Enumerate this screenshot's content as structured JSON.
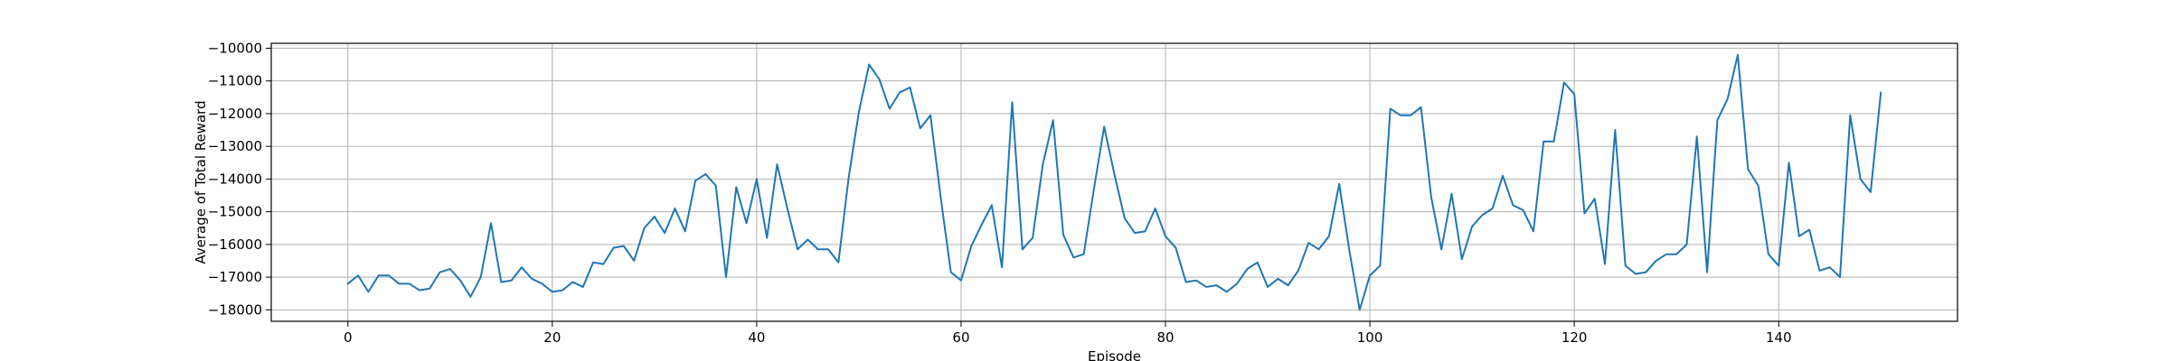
{
  "chart_data": {
    "type": "line",
    "title": "",
    "xlabel": "Episode",
    "ylabel": "Average of Total Reward",
    "xlim": [
      -7.5,
      157.5
    ],
    "ylim": [
      -18350,
      -9850
    ],
    "xticks": [
      0,
      20,
      40,
      60,
      80,
      100,
      120,
      140
    ],
    "yticks": [
      -18000,
      -17000,
      -16000,
      -15000,
      -14000,
      -13000,
      -12000,
      -11000,
      -10000
    ],
    "xtick_labels": [
      "0",
      "20",
      "40",
      "60",
      "80",
      "100",
      "120",
      "140"
    ],
    "ytick_labels": [
      "−18000",
      "−17000",
      "−16000",
      "−15000",
      "−14000",
      "−13000",
      "−12000",
      "−11000",
      "−10000"
    ],
    "grid": true,
    "legend": "none",
    "series": [
      {
        "color": "#1f77b4",
        "x": [
          0,
          1,
          2,
          3,
          4,
          5,
          6,
          7,
          8,
          9,
          10,
          11,
          12,
          13,
          14,
          15,
          16,
          17,
          18,
          19,
          20,
          21,
          22,
          23,
          24,
          25,
          26,
          27,
          28,
          29,
          30,
          31,
          32,
          33,
          34,
          35,
          36,
          37,
          38,
          39,
          40,
          41,
          42,
          43,
          44,
          45,
          46,
          47,
          48,
          49,
          50,
          51,
          52,
          53,
          54,
          55,
          56,
          57,
          58,
          59,
          60,
          61,
          62,
          63,
          64,
          65,
          66,
          67,
          68,
          69,
          70,
          71,
          72,
          73,
          74,
          75,
          76,
          77,
          78,
          79,
          80,
          81,
          82,
          83,
          84,
          85,
          86,
          87,
          88,
          89,
          90,
          91,
          92,
          93,
          94,
          95,
          96,
          97,
          98,
          99,
          100,
          101,
          102,
          103,
          104,
          105,
          106,
          107,
          108,
          109,
          110,
          111,
          112,
          113,
          114,
          115,
          116,
          117,
          118,
          119,
          120,
          121,
          122,
          123,
          124,
          125,
          126,
          127,
          128,
          129,
          130,
          131,
          132,
          133,
          134,
          135,
          136,
          137,
          138,
          139,
          140,
          141,
          142,
          143,
          144,
          145,
          146,
          147,
          148,
          149,
          150
        ],
        "y": [
          -17200,
          -16950,
          -17450,
          -16950,
          -16950,
          -17200,
          -17200,
          -17400,
          -17350,
          -16850,
          -16750,
          -17100,
          -17600,
          -17000,
          -15350,
          -17150,
          -17100,
          -16700,
          -17050,
          -17200,
          -17450,
          -17400,
          -17150,
          -17300,
          -16550,
          -16600,
          -16100,
          -16050,
          -16500,
          -15500,
          -15150,
          -15650,
          -14900,
          -15600,
          -14050,
          -13850,
          -14200,
          -17000,
          -14250,
          -15350,
          -14000,
          -15800,
          -13550,
          -14900,
          -16150,
          -15850,
          -16150,
          -16150,
          -16550,
          -13950,
          -11950,
          -10500,
          -10950,
          -11850,
          -11350,
          -11200,
          -12450,
          -12050,
          -14550,
          -16850,
          -17100,
          -16050,
          -15400,
          -14800,
          -16700,
          -11650,
          -16150,
          -15800,
          -13550,
          -12200,
          -15700,
          -16400,
          -16300,
          -14300,
          -12400,
          -13850,
          -15200,
          -15650,
          -15600,
          -14900,
          -15750,
          -16100,
          -17150,
          -17100,
          -17300,
          -17250,
          -17450,
          -17200,
          -16750,
          -16550,
          -17300,
          -17050,
          -17250,
          -16800,
          -15950,
          -16150,
          -15750,
          -14150,
          -16200,
          -18000,
          -16950,
          -16650,
          -11850,
          -12050,
          -12050,
          -11800,
          -14550,
          -16150,
          -14450,
          -16450,
          -15450,
          -15100,
          -14900,
          -13900,
          -14800,
          -14950,
          -15600,
          -12850,
          -12850,
          -11050,
          -11400,
          -15050,
          -14600,
          -16600,
          -12500,
          -16650,
          -16900,
          -16850,
          -16500,
          -16300,
          -16300,
          -16000,
          -12700,
          -16850,
          -12200,
          -11550,
          -10200,
          -13700,
          -14200,
          -16300,
          -16650,
          -13500,
          -15750,
          -15550,
          -16800,
          -16700,
          -17000,
          -12050,
          -14000,
          -14400,
          -11350
        ]
      }
    ]
  }
}
